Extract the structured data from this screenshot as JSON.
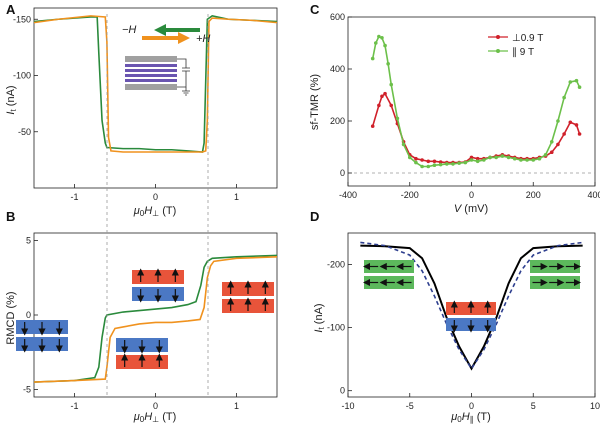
{
  "colors": {
    "green": "#2a8a3c",
    "orange": "#f0921e",
    "red": "#d0202a",
    "lgreen": "#6cc04a",
    "blue": "#4b78c4",
    "redbox": "#e8543a",
    "greenbox": "#5cb85c",
    "purple": "#6a55b0",
    "gray": "#9a9a9a",
    "navy": "#2e3f8f"
  },
  "panels": {
    "A": "A",
    "B": "B",
    "C": "C",
    "D": "D"
  },
  "A": {
    "ylabel_main": "I",
    "ylabel_sub": "t",
    "ylabel_unit": " (nA)",
    "xlabel_pre": "μ",
    "xlabel_sub0": "0",
    "xlabel_H": "H",
    "xlabel_sub": "⊥",
    "xlabel_unit": " (T)",
    "xticks": [
      "-1",
      "0",
      "1"
    ],
    "yticks": [
      "-150",
      "-100",
      "-50"
    ],
    "legend_minus": "−H",
    "legend_plus": "+H"
  },
  "B": {
    "ylabel": "RMCD (%)",
    "xlabel_pre": "μ",
    "xlabel_sub0": "0",
    "xlabel_H": "H",
    "xlabel_sub": "⊥",
    "xlabel_unit": " (T)",
    "xticks": [
      "-1",
      "0",
      "1"
    ],
    "yticks": [
      "5",
      "0",
      "-5"
    ]
  },
  "C": {
    "ylabel": "sf-TMR (%)",
    "xlabel_V": "V",
    "xlabel_unit": " (mV)",
    "xticks": [
      "-400",
      "-200",
      "0",
      "200",
      "400"
    ],
    "yticks": [
      "0",
      "200",
      "400",
      "600"
    ],
    "legend": [
      "⊥0.9 T",
      "∥ 9 T"
    ]
  },
  "D": {
    "ylabel_main": "I",
    "ylabel_sub": "t",
    "ylabel_unit": " (nA)",
    "xlabel_pre": "μ",
    "xlabel_sub0": "0",
    "xlabel_H": "H",
    "xlabel_sub": "∥",
    "xlabel_unit": " (T)",
    "xticks": [
      "-10",
      "-5",
      "0",
      "5",
      "10"
    ],
    "yticks": [
      "-200",
      "-100",
      "0"
    ]
  },
  "chart_data": [
    {
      "type": "line",
      "panel": "A",
      "xlim": [
        -1.5,
        1.5
      ],
      "ylim": [
        -160,
        0
      ],
      "series": [
        {
          "color": "green",
          "x": [
            -1.5,
            -1.2,
            -0.8,
            -0.72,
            -0.7,
            -0.66,
            -0.62,
            -0.6,
            -0.4,
            -0.2,
            0,
            0.2,
            0.4,
            0.58,
            0.6,
            0.64,
            0.7,
            0.9,
            1.2,
            1.5
          ],
          "y": [
            -148,
            -150,
            -152,
            -152,
            -120,
            -60,
            -40,
            -36,
            -35,
            -35,
            -34,
            -34,
            -33,
            -32,
            -40,
            -150,
            -153,
            -150,
            -149,
            -148
          ]
        },
        {
          "color": "orange",
          "x": [
            -1.5,
            -1.2,
            -0.8,
            -0.62,
            -0.6,
            -0.58,
            -0.55,
            -0.4,
            -0.2,
            0,
            0.2,
            0.4,
            0.58,
            0.62,
            0.64,
            0.66,
            0.7,
            0.9,
            1.2,
            1.5
          ],
          "y": [
            -147,
            -150,
            -153,
            -152,
            -130,
            -45,
            -33,
            -32,
            -32,
            -32,
            -32,
            -32,
            -32,
            -33,
            -60,
            -148,
            -151,
            -150,
            -149,
            -147
          ]
        }
      ]
    },
    {
      "type": "line",
      "panel": "B",
      "xlim": [
        -1.5,
        1.5
      ],
      "ylim": [
        -5.5,
        5.5
      ],
      "series": [
        {
          "color": "green",
          "x": [
            -1.5,
            -1.0,
            -0.75,
            -0.7,
            -0.66,
            -0.62,
            -0.6,
            -0.4,
            -0.2,
            0,
            0.2,
            0.4,
            0.5,
            0.56,
            0.6,
            0.64,
            0.7,
            1.0,
            1.5
          ],
          "y": [
            -4.5,
            -4.4,
            -4.2,
            -3.5,
            -1.5,
            -0.2,
            0,
            0.2,
            0.3,
            0.4,
            0.5,
            0.7,
            0.9,
            2.0,
            3.2,
            3.6,
            3.8,
            3.9,
            4.0
          ]
        },
        {
          "color": "orange",
          "x": [
            -1.5,
            -1.0,
            -0.62,
            -0.6,
            -0.56,
            -0.5,
            -0.4,
            -0.2,
            0,
            0.2,
            0.4,
            0.55,
            0.6,
            0.64,
            0.68,
            0.72,
            1.0,
            1.5
          ],
          "y": [
            -4.5,
            -4.4,
            -4.3,
            -3.5,
            -1.5,
            -0.9,
            -0.8,
            -0.6,
            -0.5,
            -0.5,
            -0.4,
            -0.3,
            0.5,
            2.5,
            3.3,
            3.6,
            3.8,
            3.9
          ]
        }
      ]
    },
    {
      "type": "line",
      "panel": "C",
      "xlim": [
        -400,
        400
      ],
      "ylim": [
        -50,
        600
      ],
      "series": [
        {
          "name": "⊥0.9 T",
          "color": "red",
          "x": [
            -320,
            -300,
            -290,
            -280,
            -260,
            -240,
            -220,
            -200,
            -180,
            -160,
            -140,
            -120,
            -100,
            -80,
            -60,
            -40,
            -20,
            0,
            20,
            40,
            60,
            80,
            100,
            120,
            140,
            160,
            180,
            200,
            220,
            240,
            260,
            280,
            300,
            320,
            340,
            350
          ],
          "y": [
            180,
            260,
            295,
            305,
            260,
            190,
            120,
            70,
            55,
            50,
            45,
            45,
            42,
            40,
            40,
            40,
            42,
            60,
            55,
            55,
            60,
            65,
            70,
            65,
            60,
            55,
            55,
            55,
            60,
            65,
            80,
            110,
            150,
            195,
            185,
            150
          ]
        },
        {
          "name": "∥ 9 T",
          "color": "lgreen",
          "x": [
            -320,
            -310,
            -300,
            -290,
            -280,
            -270,
            -260,
            -240,
            -220,
            -200,
            -180,
            -160,
            -140,
            -120,
            -100,
            -80,
            -60,
            -40,
            -20,
            0,
            20,
            40,
            60,
            80,
            100,
            120,
            140,
            160,
            180,
            200,
            220,
            240,
            260,
            280,
            300,
            320,
            340,
            350
          ],
          "y": [
            440,
            500,
            525,
            520,
            490,
            420,
            340,
            210,
            110,
            60,
            40,
            25,
            25,
            30,
            32,
            35,
            35,
            38,
            40,
            50,
            45,
            50,
            60,
            60,
            65,
            60,
            55,
            50,
            50,
            50,
            55,
            70,
            120,
            200,
            290,
            350,
            355,
            330
          ]
        }
      ]
    },
    {
      "type": "line",
      "panel": "D",
      "xlim": [
        -10,
        10
      ],
      "ylim": [
        -250,
        10
      ],
      "series": [
        {
          "color": "black",
          "style": "solid",
          "x": [
            -9,
            -7,
            -5,
            -4,
            -3,
            -2,
            -1,
            0,
            1,
            2,
            3,
            4,
            5,
            7,
            9
          ],
          "y": [
            -230,
            -229,
            -226,
            -210,
            -170,
            -115,
            -70,
            -35,
            -70,
            -115,
            -170,
            -210,
            -226,
            -229,
            -230
          ]
        },
        {
          "color": "navy",
          "style": "dashed",
          "x": [
            -9,
            -7,
            -5,
            -4,
            -3,
            -2,
            -1,
            0,
            1,
            2,
            3,
            4,
            5,
            7,
            9
          ],
          "y": [
            -235,
            -230,
            -215,
            -190,
            -150,
            -105,
            -65,
            -35,
            -65,
            -105,
            -150,
            -190,
            -215,
            -230,
            -235
          ]
        }
      ]
    }
  ]
}
